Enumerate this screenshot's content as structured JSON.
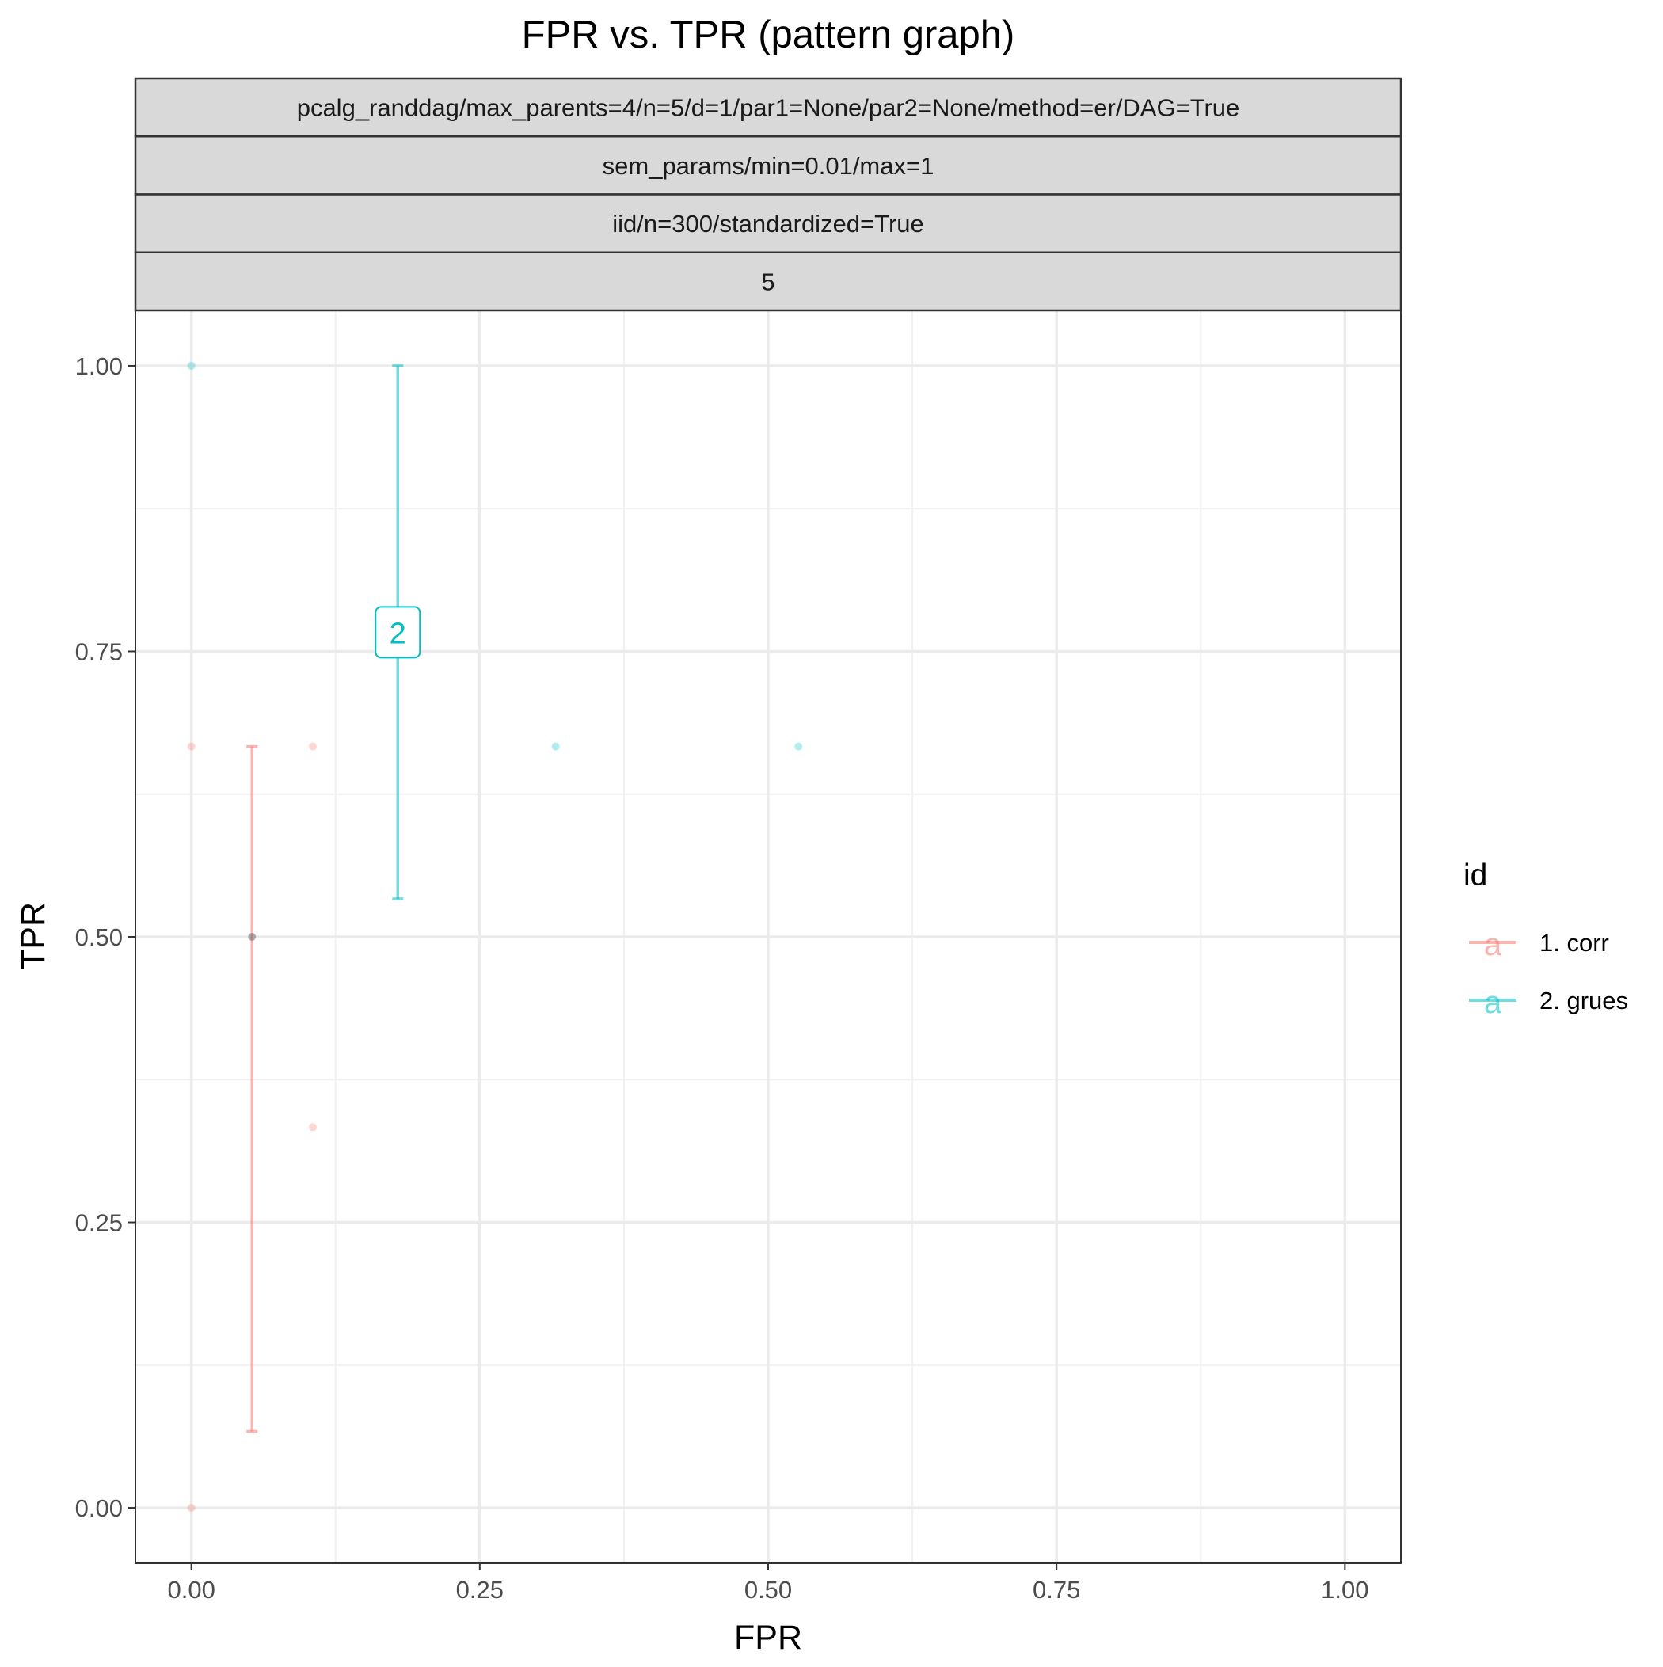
{
  "chart_data": {
    "type": "scatter",
    "title": "FPR vs. TPR (pattern graph)",
    "xlabel": "FPR",
    "ylabel": "TPR",
    "xlim": [
      -0.0485,
      1.0485
    ],
    "ylim": [
      -0.0485,
      1.0485
    ],
    "x_ticks": [
      0.0,
      0.25,
      0.5,
      0.75,
      1.0
    ],
    "x_tick_labels": [
      "0.00",
      "0.25",
      "0.50",
      "0.75",
      "1.00"
    ],
    "y_ticks": [
      0.0,
      0.25,
      0.5,
      0.75,
      1.0
    ],
    "y_tick_labels": [
      "0.00",
      "0.25",
      "0.50",
      "0.75",
      "1.00"
    ],
    "grid": true,
    "facet_strips": [
      "pcalg_randdag/max_parents=4/n=5/d=1/par1=None/par2=None/method=er/DAG=True",
      "sem_params/min=0.01/max=1",
      "iid/n=300/standardized=True",
      "5"
    ],
    "legend": {
      "title": "id",
      "position": "right",
      "entries": [
        "1. corr",
        "2. grues"
      ],
      "key_glyph": "a"
    },
    "series": [
      {
        "name": "1. corr",
        "color": "#F8766D",
        "points": [
          {
            "x": 0.0,
            "y": 0.6667
          },
          {
            "x": 0.0,
            "y": 0.0
          },
          {
            "x": 0.1053,
            "y": 0.6667
          },
          {
            "x": 0.1053,
            "y": 0.3333
          }
        ],
        "summary": {
          "x": 0.0526,
          "y": 0.5,
          "ymin": 0.067,
          "ymax": 0.6667
        }
      },
      {
        "name": "2. grues",
        "color": "#00BFC4",
        "points": [
          {
            "x": 0.0,
            "y": 1.0
          },
          {
            "x": 0.3158,
            "y": 0.6667
          },
          {
            "x": 0.5263,
            "y": 0.6667
          }
        ],
        "summary": {
          "ymin": 0.5333,
          "ymax": 1.0,
          "x": 0.1789
        },
        "label": {
          "text": "2",
          "x": 0.1789,
          "y": 0.7667
        }
      }
    ]
  }
}
